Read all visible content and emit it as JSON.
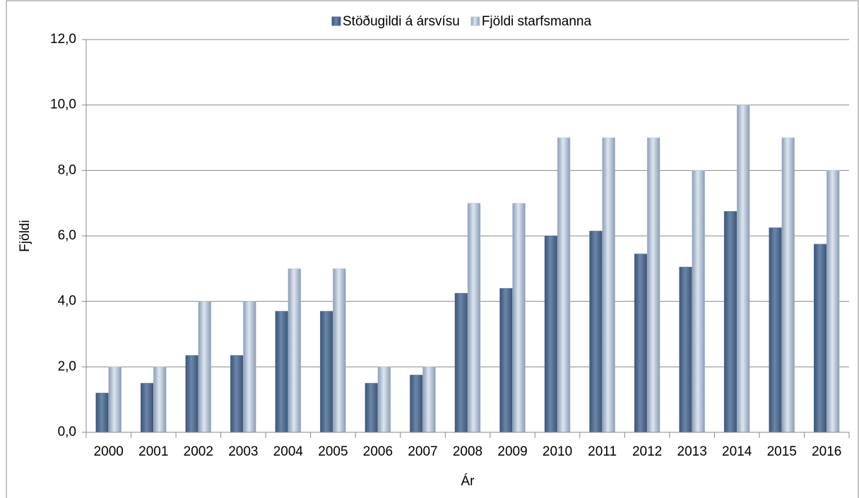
{
  "chart_data": {
    "type": "bar",
    "categories": [
      "2000",
      "2001",
      "2002",
      "2003",
      "2004",
      "2005",
      "2006",
      "2007",
      "2008",
      "2009",
      "2010",
      "2011",
      "2012",
      "2013",
      "2014",
      "2015",
      "2016"
    ],
    "series": [
      {
        "name": "Stöðugildi á ársvísu",
        "color": "#4f6a8f",
        "values": [
          1.2,
          1.5,
          2.35,
          2.35,
          3.7,
          3.7,
          1.5,
          1.75,
          4.25,
          4.4,
          6.0,
          6.15,
          5.45,
          5.05,
          6.75,
          6.25,
          5.75
        ]
      },
      {
        "name": "Fjöldi starfsmanna",
        "color": "#b9c8dc",
        "values": [
          2,
          2,
          4,
          4,
          5,
          5,
          2,
          2,
          7,
          7,
          9,
          9,
          9,
          8,
          10,
          9,
          8
        ]
      }
    ],
    "ylim": [
      0,
      12
    ],
    "yticks": [
      {
        "value": 0,
        "label": "0,0"
      },
      {
        "value": 2,
        "label": "2,0"
      },
      {
        "value": 4,
        "label": "4,0"
      },
      {
        "value": 6,
        "label": "6,0"
      },
      {
        "value": 8,
        "label": "8,0"
      },
      {
        "value": 10,
        "label": "10,0"
      },
      {
        "value": 12,
        "label": "12,0"
      }
    ],
    "ylabel": "Fjöldi",
    "xlabel": "Ár",
    "grid": true,
    "legend": "top"
  }
}
